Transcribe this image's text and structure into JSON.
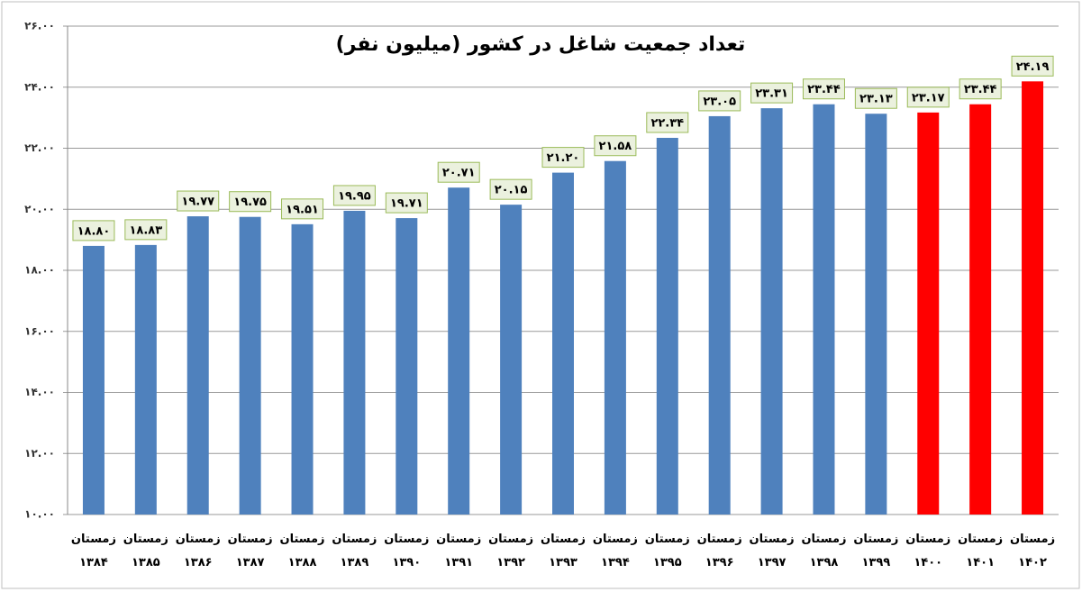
{
  "chart_data": {
    "type": "bar",
    "title": "تعداد جمعیت شاغل در کشور (میلیون نفر)",
    "categories": [
      "زمستان ۱۳۸۴",
      "زمستان ۱۳۸۵",
      "زمستان ۱۳۸۶",
      "زمستان ۱۳۸۷",
      "زمستان ۱۳۸۸",
      "زمستان ۱۳۸۹",
      "زمستان ۱۳۹۰",
      "زمستان ۱۳۹۱",
      "زمستان ۱۳۹۲",
      "زمستان ۱۳۹۳",
      "زمستان ۱۳۹۴",
      "زمستان ۱۳۹۵",
      "زمستان ۱۳۹۶",
      "زمستان ۱۳۹۷",
      "زمستان ۱۳۹۸",
      "زمستان ۱۳۹۹",
      "زمستان ۱۴۰۰",
      "زمستان ۱۴۰۱",
      "زمستان ۱۴۰۲"
    ],
    "values": [
      18.8,
      18.83,
      19.77,
      19.75,
      19.51,
      19.95,
      19.71,
      20.71,
      20.15,
      21.2,
      21.58,
      22.34,
      23.05,
      23.31,
      23.44,
      23.13,
      23.17,
      23.44,
      24.19
    ],
    "value_labels": [
      "۱۸.۸۰",
      "۱۸.۸۳",
      "۱۹.۷۷",
      "۱۹.۷۵",
      "۱۹.۵۱",
      "۱۹.۹۵",
      "۱۹.۷۱",
      "۲۰.۷۱",
      "۲۰.۱۵",
      "۲۱.۲۰",
      "۲۱.۵۸",
      "۲۲.۳۴",
      "۲۳.۰۵",
      "۲۳.۳۱",
      "۲۳.۴۴",
      "۲۳.۱۳",
      "۲۳.۱۷",
      "۲۳.۴۴",
      "۲۴.۱۹"
    ],
    "colors": [
      "#4f81bd",
      "#4f81bd",
      "#4f81bd",
      "#4f81bd",
      "#4f81bd",
      "#4f81bd",
      "#4f81bd",
      "#4f81bd",
      "#4f81bd",
      "#4f81bd",
      "#4f81bd",
      "#4f81bd",
      "#4f81bd",
      "#4f81bd",
      "#4f81bd",
      "#4f81bd",
      "#ff0000",
      "#ff0000",
      "#ff0000"
    ],
    "ylim": [
      10,
      26
    ],
    "yticks": [
      {
        "value": 10,
        "label": "۱۰.۰۰"
      },
      {
        "value": 12,
        "label": "۱۲.۰۰"
      },
      {
        "value": 14,
        "label": "۱۴.۰۰"
      },
      {
        "value": 16,
        "label": "۱۶.۰۰"
      },
      {
        "value": 18,
        "label": "۱۸.۰۰"
      },
      {
        "value": 20,
        "label": "۲۰.۰۰"
      },
      {
        "value": 22,
        "label": "۲۲.۰۰"
      },
      {
        "value": 24,
        "label": "۲۴.۰۰"
      },
      {
        "value": 26,
        "label": "۲۶.۰۰"
      }
    ],
    "grid": true
  }
}
